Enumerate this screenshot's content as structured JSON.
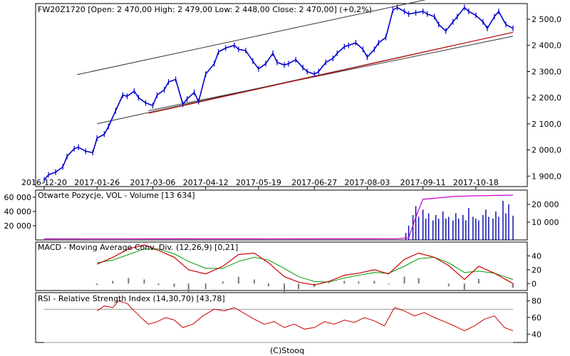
{
  "footer": "(C)Stooq",
  "colors": {
    "price": "#0000cc",
    "channel": "#333333",
    "trend": "#cc0000",
    "oi": "#cc00cc",
    "volume": "#0000aa",
    "macd": "#cc0000",
    "signal": "#009900",
    "hist": "#777777",
    "rsi": "#cc0000",
    "grid": "#999999"
  },
  "chart_data": [
    {
      "type": "line",
      "title": "FW20Z1720 [Open: 2 470,00  High: 2 479,00  Low: 2 448,00  Close: 2 470,00] (+0,2%)",
      "x_ticks": [
        "2016-12-20",
        "2017-01-26",
        "2017-03-06",
        "2017-04-12",
        "2017-05-19",
        "2017-06-27",
        "2017-08-03",
        "2017-09-11",
        "2017-10-18"
      ],
      "y_ticks": [
        "1 900,0",
        "2 000,0",
        "2 100,0",
        "2 200,0",
        "2 300,0",
        "2 400,0",
        "2 500,0"
      ],
      "ylim": [
        1860,
        2560
      ],
      "series": [
        {
          "x": [
            "2016-12-20",
            "2016-12-23",
            "2016-12-28",
            "2017-01-02",
            "2017-01-05",
            "2017-01-10",
            "2017-01-13",
            "2017-01-18",
            "2017-01-23",
            "2017-01-26",
            "2017-01-31",
            "2017-02-03",
            "2017-02-08",
            "2017-02-13",
            "2017-02-16",
            "2017-02-21",
            "2017-02-24",
            "2017-03-01",
            "2017-03-06",
            "2017-03-09",
            "2017-03-14",
            "2017-03-17",
            "2017-03-22",
            "2017-03-27",
            "2017-03-30",
            "2017-04-04",
            "2017-04-07",
            "2017-04-12",
            "2017-04-18",
            "2017-04-21",
            "2017-04-26",
            "2017-05-02",
            "2017-05-05",
            "2017-05-10",
            "2017-05-15",
            "2017-05-19",
            "2017-05-24",
            "2017-05-29",
            "2017-06-01",
            "2017-06-06",
            "2017-06-09",
            "2017-06-14",
            "2017-06-19",
            "2017-06-22",
            "2017-06-27",
            "2017-06-30",
            "2017-07-05",
            "2017-07-10",
            "2017-07-13",
            "2017-07-18",
            "2017-07-21",
            "2017-07-26",
            "2017-07-31",
            "2017-08-03",
            "2017-08-08",
            "2017-08-11",
            "2017-08-16",
            "2017-08-21",
            "2017-08-24",
            "2017-08-29",
            "2017-09-01",
            "2017-09-06",
            "2017-09-11",
            "2017-09-14",
            "2017-09-19",
            "2017-09-22",
            "2017-09-27",
            "2017-10-02",
            "2017-10-05",
            "2017-10-10",
            "2017-10-13",
            "2017-10-18",
            "2017-10-23",
            "2017-10-26",
            "2017-10-31",
            "2017-11-03",
            "2017-11-08",
            "2017-11-13"
          ],
          "values": [
            1885,
            1905,
            1915,
            1935,
            1975,
            2005,
            2010,
            1995,
            1990,
            2045,
            2060,
            2090,
            2150,
            2210,
            2205,
            2225,
            2200,
            2180,
            2170,
            2210,
            2230,
            2260,
            2270,
            2175,
            2195,
            2220,
            2185,
            2290,
            2330,
            2375,
            2390,
            2400,
            2385,
            2380,
            2340,
            2310,
            2330,
            2370,
            2335,
            2325,
            2330,
            2345,
            2315,
            2300,
            2290,
            2300,
            2335,
            2350,
            2370,
            2395,
            2400,
            2410,
            2385,
            2355,
            2385,
            2410,
            2430,
            2535,
            2545,
            2530,
            2520,
            2525,
            2530,
            2520,
            2510,
            2480,
            2455,
            2490,
            2510,
            2545,
            2530,
            2515,
            2490,
            2465,
            2510,
            2530,
            2480,
            2465
          ]
        }
      ]
    },
    {
      "type": "bar",
      "title": "Otwarte Pozycje, VOL - Volume [13 634]",
      "left_ticks": [
        "20 000",
        "40 000",
        "60 000"
      ],
      "right_ticks": [
        "10 000",
        "20 000"
      ],
      "oi_ylim": [
        0,
        70000
      ],
      "vol_ylim": [
        0,
        28000
      ],
      "oi_x": [
        "2016-12-20",
        "2017-08-24",
        "2017-09-01",
        "2017-09-06",
        "2017-09-11",
        "2017-10-02",
        "2017-10-18",
        "2017-11-13"
      ],
      "oi_values": [
        1500,
        1800,
        3000,
        32000,
        57000,
        61000,
        62000,
        63000
      ],
      "vol_x": [
        "2017-08-30",
        "2017-09-01",
        "2017-09-04",
        "2017-09-06",
        "2017-09-08",
        "2017-09-11",
        "2017-09-13",
        "2017-09-15",
        "2017-09-18",
        "2017-09-20",
        "2017-09-22",
        "2017-09-25",
        "2017-09-27",
        "2017-09-29",
        "2017-10-02",
        "2017-10-04",
        "2017-10-06",
        "2017-10-09",
        "2017-10-11",
        "2017-10-13",
        "2017-10-16",
        "2017-10-18",
        "2017-10-20",
        "2017-10-23",
        "2017-10-25",
        "2017-10-27",
        "2017-10-30",
        "2017-11-01",
        "2017-11-03",
        "2017-11-06",
        "2017-11-08",
        "2017-11-10",
        "2017-11-13"
      ],
      "vol_values": [
        4000,
        8000,
        14000,
        19000,
        13000,
        17000,
        12000,
        15000,
        11000,
        14000,
        12000,
        16000,
        12000,
        13000,
        11000,
        15000,
        12000,
        14000,
        11000,
        18000,
        13000,
        12000,
        11000,
        14000,
        17000,
        13000,
        12000,
        16000,
        13000,
        22000,
        15000,
        20000,
        13634
      ]
    },
    {
      "type": "line",
      "title": "MACD - Moving Average Conv. Div. (12,26,9) [0,21]",
      "y_ticks": [
        "0",
        "20",
        "40"
      ],
      "ylim": [
        -10,
        60
      ],
      "x": [
        "2017-01-26",
        "2017-02-06",
        "2017-02-17",
        "2017-02-28",
        "2017-03-10",
        "2017-03-21",
        "2017-03-31",
        "2017-04-12",
        "2017-04-24",
        "2017-05-05",
        "2017-05-16",
        "2017-05-26",
        "2017-06-06",
        "2017-06-16",
        "2017-06-27",
        "2017-07-07",
        "2017-07-18",
        "2017-07-28",
        "2017-08-08",
        "2017-08-18",
        "2017-08-29",
        "2017-09-08",
        "2017-09-19",
        "2017-09-29",
        "2017-10-10",
        "2017-10-20",
        "2017-10-31",
        "2017-11-13"
      ],
      "series": [
        {
          "name": "MACD",
          "values": [
            28,
            38,
            50,
            56,
            48,
            38,
            20,
            14,
            25,
            42,
            44,
            30,
            10,
            2,
            -2,
            3,
            12,
            15,
            20,
            14,
            35,
            44,
            38,
            26,
            6,
            25,
            15,
            0
          ]
        },
        {
          "name": "Signal",
          "values": [
            30,
            34,
            42,
            50,
            50,
            43,
            32,
            22,
            22,
            32,
            38,
            34,
            22,
            10,
            3,
            2,
            8,
            12,
            16,
            15,
            25,
            36,
            38,
            30,
            16,
            18,
            15,
            6
          ]
        },
        {
          "name": "Histogram",
          "values": [
            -2,
            4,
            8,
            6,
            -2,
            -5,
            -12,
            -8,
            3,
            10,
            6,
            -4,
            -12,
            -8,
            -5,
            1,
            4,
            3,
            4,
            -1,
            10,
            8,
            0,
            -4,
            -10,
            7,
            0,
            -6
          ]
        }
      ]
    },
    {
      "type": "line",
      "title": "RSI - Relative Strength Index (14,30,70) [43,78]",
      "y_ticks": [
        "40",
        "60",
        "80"
      ],
      "ylim": [
        30,
        90
      ],
      "reference_lines": [
        30,
        70
      ],
      "x": [
        "2017-01-26",
        "2017-01-31",
        "2017-02-06",
        "2017-02-10",
        "2017-02-16",
        "2017-02-21",
        "2017-02-27",
        "2017-03-03",
        "2017-03-09",
        "2017-03-15",
        "2017-03-21",
        "2017-03-27",
        "2017-04-03",
        "2017-04-10",
        "2017-04-18",
        "2017-04-25",
        "2017-05-02",
        "2017-05-09",
        "2017-05-16",
        "2017-05-23",
        "2017-05-30",
        "2017-06-06",
        "2017-06-13",
        "2017-06-20",
        "2017-06-27",
        "2017-07-04",
        "2017-07-11",
        "2017-07-18",
        "2017-07-25",
        "2017-08-01",
        "2017-08-08",
        "2017-08-15",
        "2017-08-22",
        "2017-08-29",
        "2017-09-05",
        "2017-09-12",
        "2017-09-19",
        "2017-09-26",
        "2017-10-03",
        "2017-10-10",
        "2017-10-17",
        "2017-10-24",
        "2017-10-31",
        "2017-11-07",
        "2017-11-13"
      ],
      "values": [
        68,
        74,
        72,
        80,
        77,
        68,
        58,
        52,
        55,
        60,
        57,
        48,
        52,
        62,
        70,
        68,
        72,
        65,
        58,
        52,
        55,
        48,
        52,
        46,
        48,
        55,
        52,
        57,
        54,
        60,
        56,
        50,
        72,
        68,
        62,
        66,
        60,
        55,
        50,
        44,
        50,
        58,
        62,
        48,
        44
      ]
    }
  ]
}
